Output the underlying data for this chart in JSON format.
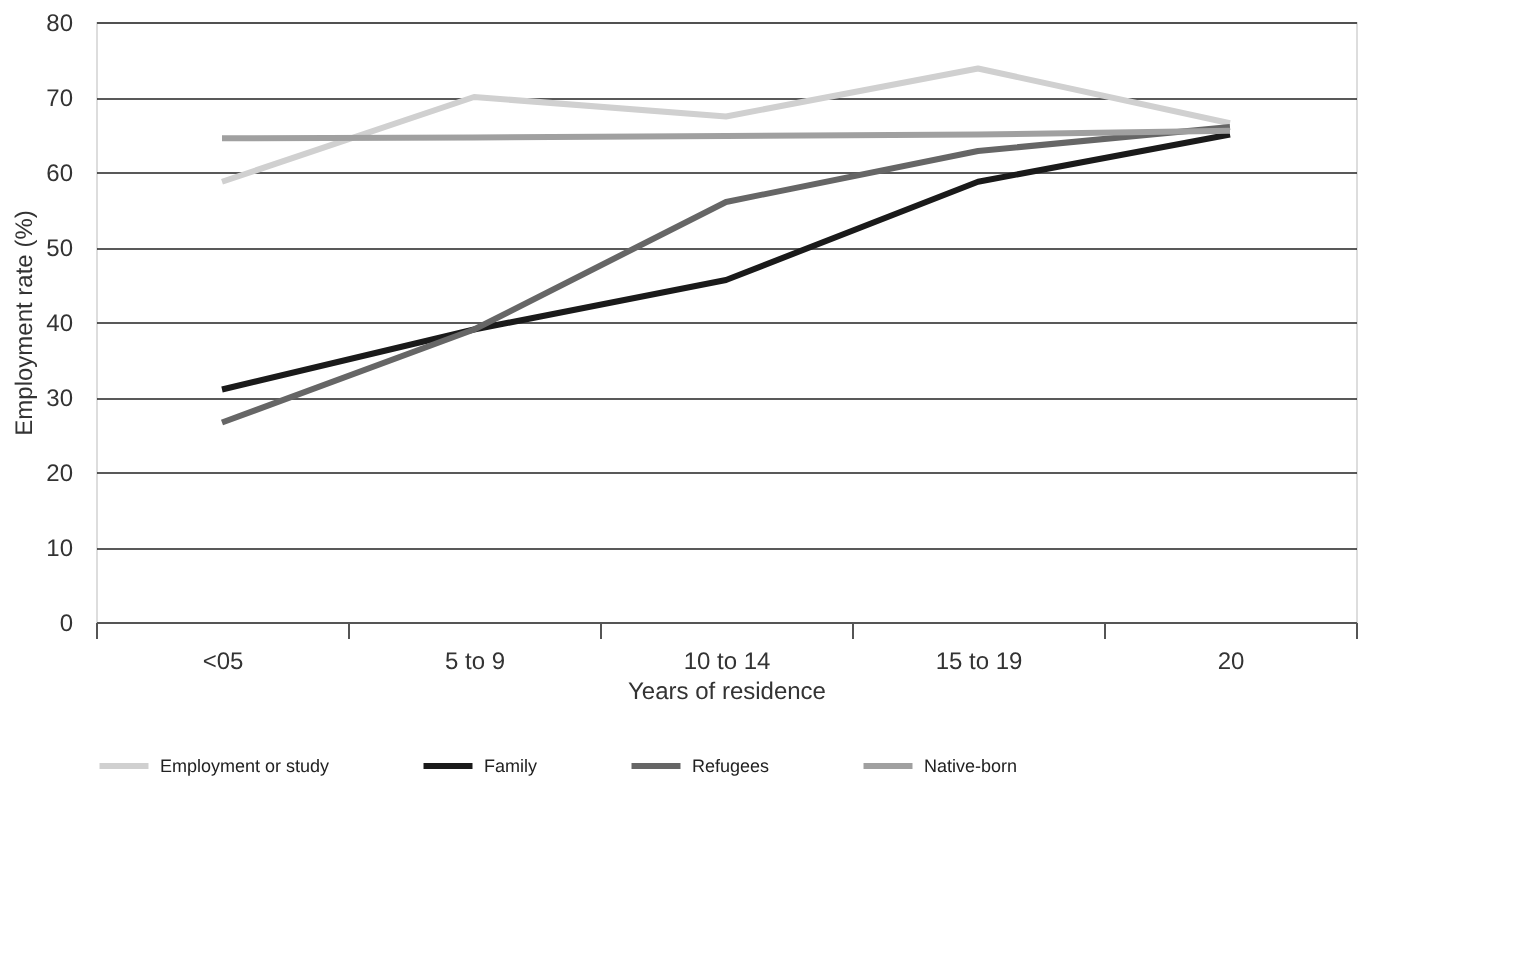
{
  "chart_data": {
    "type": "line",
    "xlabel": "Years of residence",
    "ylabel": "Employment rate (%)",
    "categories": [
      "<05",
      "5 to 9",
      "10 to 14",
      "15 to 19",
      "20"
    ],
    "series": [
      {
        "name": "Employment or study",
        "color": "#d0d0d0",
        "values": [
          58.7,
          70,
          67.4,
          73.8,
          66.5
        ]
      },
      {
        "name": "Family",
        "color": "#1a1a1a",
        "values": [
          31,
          39,
          45.6,
          58.7,
          65
        ]
      },
      {
        "name": "Refugees",
        "color": "#666666",
        "values": [
          26.6,
          39,
          56,
          62.8,
          66
        ]
      },
      {
        "name": "Native-born",
        "color": "#a0a0a0",
        "values": [
          64.5,
          64.6,
          64.8,
          65,
          65.5
        ]
      }
    ],
    "ylim": [
      0,
      80
    ],
    "yticks": [
      0,
      10,
      20,
      30,
      40,
      50,
      60,
      70,
      80
    ],
    "grid": "y",
    "legend": "bottom",
    "marker": "none",
    "line_style": "solid"
  }
}
